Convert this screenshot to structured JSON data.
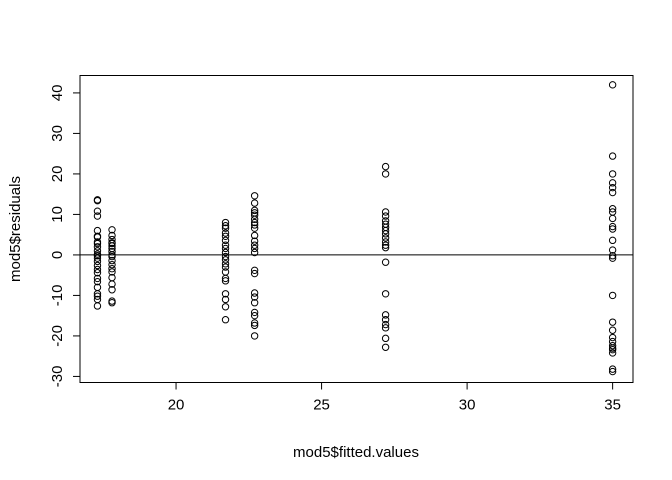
{
  "chart_data": {
    "type": "scatter",
    "title": "",
    "xlabel": "mod5$fitted.values",
    "ylabel": "mod5$residuals",
    "xlim": [
      16.7,
      35.7
    ],
    "ylim": [
      -31.5,
      44.3
    ],
    "x_ticks": [
      20,
      25,
      30,
      35
    ],
    "y_ticks": [
      -30,
      -20,
      -10,
      0,
      10,
      20,
      30,
      40
    ],
    "grid": false,
    "legend": "none",
    "reference_line": {
      "type": "horizontal",
      "y": 0
    },
    "groups": [
      {
        "x": 17.3,
        "y": [
          13.6,
          13.4,
          10.8,
          9.6,
          6.0,
          4.6,
          4.4,
          3.2,
          2.8,
          2.0,
          1.0,
          0.2,
          -0.2,
          -0.8,
          -1.6,
          -2.6,
          -3.6,
          -4.4,
          -5.8,
          -6.6,
          -8.0,
          -9.6,
          -10.2,
          -11.0,
          -12.6
        ]
      },
      {
        "x": 17.8,
        "y": [
          6.2,
          4.8,
          3.8,
          3.0,
          2.8,
          2.2,
          1.6,
          0.8,
          0.0,
          -0.4,
          -1.4,
          -2.4,
          -3.4,
          -4.2,
          -5.6,
          -7.2,
          -8.6,
          -11.4,
          -11.8
        ]
      },
      {
        "x": 21.7,
        "y": [
          8.0,
          7.2,
          6.6,
          5.4,
          4.6,
          3.6,
          2.4,
          1.6,
          0.6,
          -0.4,
          -1.2,
          -2.2,
          -3.0,
          -4.2,
          -5.8,
          -6.4,
          -9.6,
          -11.0,
          -12.8,
          -16.0
        ]
      },
      {
        "x": 22.7,
        "y": [
          14.6,
          12.8,
          11.0,
          10.4,
          9.8,
          8.8,
          8.0,
          7.4,
          6.6,
          4.8,
          3.4,
          2.4,
          1.6,
          0.6,
          -3.8,
          -4.6,
          -9.4,
          -10.4,
          -11.8,
          -14.2,
          -15.0,
          -16.8,
          -17.4,
          -20.0
        ]
      },
      {
        "x": 27.2,
        "y": [
          21.8,
          20.0,
          10.6,
          9.6,
          8.4,
          7.6,
          6.8,
          6.0,
          5.2,
          4.2,
          3.2,
          2.4,
          1.8,
          -1.8,
          -9.6,
          -14.8,
          -16.0,
          -17.2,
          -18.0,
          -20.6,
          -22.8
        ]
      },
      {
        "x": 35.0,
        "y": [
          42.0,
          24.4,
          20.0,
          17.8,
          16.6,
          15.4,
          11.4,
          10.6,
          9.0,
          7.0,
          6.4,
          3.6,
          1.2,
          -0.2,
          -0.8,
          -10.0,
          -16.6,
          -18.6,
          -20.4,
          -21.4,
          -22.4,
          -23.0,
          -23.4,
          -24.2,
          -28.2,
          -28.8
        ]
      }
    ]
  }
}
